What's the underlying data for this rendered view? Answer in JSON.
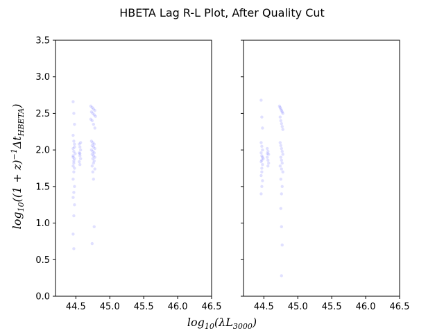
{
  "chart_data": {
    "type": "scatter",
    "title": "HBETA Lag R-L Plot, After Quality Cut",
    "xlabel": "log10(λL3000)",
    "ylabel": "log10((1+z)^-1 Δt_HBETA)",
    "xlim": [
      44.2,
      46.5
    ],
    "ylim": [
      0.0,
      3.5
    ],
    "xticks": [
      "44.5",
      "45.0",
      "45.5",
      "46.0",
      "46.5"
    ],
    "yticks": [
      "0.0",
      "0.5",
      "1.0",
      "1.5",
      "2.0",
      "2.5",
      "3.0",
      "3.5"
    ],
    "grid": false,
    "marker_color": "#0000ff",
    "panels": [
      {
        "name": "left",
        "series": [
          {
            "x": [
              44.46,
              44.47,
              44.48,
              44.46,
              44.47,
              44.48,
              44.46,
              44.47,
              44.49,
              44.46,
              44.48,
              44.47,
              44.47,
              44.46,
              44.48,
              44.47,
              44.46,
              44.48,
              44.47,
              44.46,
              44.48,
              44.47,
              44.46,
              44.47,
              44.48,
              44.46,
              44.55,
              44.56,
              44.57,
              44.55,
              44.56,
              44.57,
              44.55,
              44.56,
              44.57,
              44.56,
              44.72,
              44.74,
              44.76,
              44.78,
              44.73,
              44.75,
              44.77,
              44.79,
              44.72,
              44.74,
              44.76,
              44.78,
              44.73,
              44.75,
              44.77,
              44.74,
              44.76,
              44.78,
              44.73,
              44.75,
              44.77,
              44.74,
              44.76,
              44.78,
              44.75,
              44.77,
              44.76,
              44.74,
              44.78,
              44.75,
              44.76,
              44.77,
              44.74
            ],
            "y": [
              2.66,
              2.5,
              2.35,
              2.2,
              2.12,
              2.08,
              2.02,
              1.98,
              1.95,
              1.92,
              1.88,
              1.85,
              1.82,
              1.78,
              1.75,
              1.7,
              1.6,
              1.5,
              1.42,
              1.35,
              1.25,
              1.1,
              0.85,
              0.65,
              2.04,
              1.9,
              2.08,
              2.04,
              2.0,
              1.96,
              1.92,
              1.88,
              1.84,
              1.8,
              2.1,
              1.95,
              2.6,
              2.58,
              2.56,
              2.54,
              2.52,
              2.5,
              2.48,
              2.46,
              2.42,
              2.4,
              2.35,
              2.3,
              2.12,
              2.1,
              2.08,
              2.06,
              2.04,
              2.02,
              2.0,
              1.98,
              1.96,
              1.94,
              1.92,
              1.9,
              1.88,
              1.85,
              1.82,
              1.78,
              1.74,
              1.7,
              1.6,
              0.95,
              0.72
            ]
          }
        ]
      },
      {
        "name": "right",
        "series": [
          {
            "x": [
              44.46,
              44.47,
              44.48,
              44.46,
              44.47,
              44.48,
              44.46,
              44.47,
              44.49,
              44.46,
              44.48,
              44.47,
              44.47,
              44.46,
              44.48,
              44.47,
              44.46,
              44.48,
              44.47,
              44.55,
              44.56,
              44.57,
              44.55,
              44.56,
              44.57,
              44.56,
              44.55,
              44.73,
              44.74,
              44.75,
              44.76,
              44.77,
              44.78,
              44.74,
              44.75,
              44.76,
              44.77,
              44.78,
              44.74,
              44.75,
              44.76,
              44.77,
              44.78,
              44.75,
              44.76,
              44.77,
              44.74,
              44.76,
              44.78,
              44.75,
              44.77,
              44.76,
              44.75,
              44.76,
              44.77,
              44.76
            ],
            "y": [
              2.68,
              2.45,
              2.3,
              2.1,
              2.05,
              2.0,
              1.96,
              1.92,
              1.88,
              1.84,
              1.8,
              1.75,
              1.7,
              1.65,
              1.58,
              1.5,
              1.4,
              1.9,
              1.86,
              2.02,
              1.98,
              1.94,
              1.9,
              1.86,
              1.82,
              1.78,
              1.95,
              2.6,
              2.58,
              2.56,
              2.54,
              2.52,
              2.5,
              2.45,
              2.4,
              2.36,
              2.32,
              2.28,
              2.1,
              2.06,
              2.02,
              1.98,
              1.94,
              1.9,
              1.86,
              1.82,
              1.78,
              1.74,
              1.7,
              1.6,
              1.5,
              1.4,
              1.2,
              0.95,
              0.7,
              0.28
            ]
          }
        ]
      }
    ]
  }
}
